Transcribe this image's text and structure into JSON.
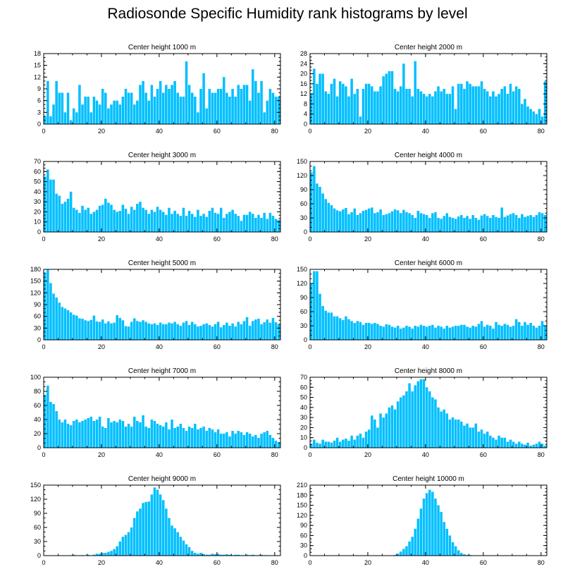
{
  "title": "Radiosonde Specific Humidity rank histograms by level",
  "bar_color": "#00BFFF",
  "chart_data": [
    {
      "type": "bar",
      "title": "Center height 1000 m",
      "xlim": [
        0,
        82
      ],
      "ylim": [
        0,
        18
      ],
      "yticks": [
        0,
        3,
        6,
        9,
        12,
        15,
        18
      ],
      "xticks": [
        0,
        20,
        40,
        60,
        80
      ],
      "values": [
        2,
        11,
        2,
        5,
        11,
        8,
        8,
        3,
        8,
        1,
        4,
        3,
        10,
        5,
        7,
        7,
        3,
        7,
        6,
        5,
        9,
        8,
        4,
        5,
        6,
        6,
        5,
        7,
        9,
        8,
        8,
        5,
        6,
        10,
        11,
        8,
        6,
        10,
        7,
        9,
        11,
        8,
        10,
        9,
        10,
        11,
        8,
        7,
        7,
        16,
        10,
        8,
        7,
        3,
        9,
        13,
        4,
        9,
        8,
        8,
        9,
        9,
        12,
        8,
        7,
        9,
        7,
        10,
        9,
        10,
        10,
        6,
        14,
        11,
        8,
        11,
        3,
        6,
        9,
        8,
        7,
        7
      ]
    },
    {
      "type": "bar",
      "title": "Center height 2000 m",
      "xlim": [
        0,
        82
      ],
      "ylim": [
        0,
        28
      ],
      "yticks": [
        0,
        4,
        8,
        12,
        16,
        20,
        24,
        28
      ],
      "xticks": [
        0,
        20,
        40,
        60,
        80
      ],
      "values": [
        12,
        22,
        16,
        20,
        20,
        13,
        12,
        16,
        18,
        11,
        17,
        16,
        15,
        11,
        18,
        12,
        14,
        3,
        14,
        16,
        16,
        15,
        13,
        13,
        15,
        19,
        20,
        21,
        21,
        14,
        13,
        15,
        24,
        14,
        14,
        11,
        25,
        14,
        13,
        12,
        11,
        12,
        11,
        13,
        15,
        13,
        14,
        12,
        12,
        15,
        6,
        16,
        16,
        14,
        17,
        16,
        15,
        15,
        15,
        17,
        14,
        13,
        11,
        13,
        11,
        12,
        14,
        15,
        12,
        16,
        13,
        15,
        14,
        8,
        10,
        7,
        6,
        5,
        4,
        6,
        3,
        17
      ]
    },
    {
      "type": "bar",
      "title": "Center height 3000 m",
      "xlim": [
        0,
        82
      ],
      "ylim": [
        0,
        70
      ],
      "yticks": [
        0,
        10,
        20,
        30,
        40,
        50,
        60,
        70
      ],
      "xticks": [
        0,
        20,
        40,
        60,
        80
      ],
      "values": [
        55,
        62,
        52,
        52,
        38,
        36,
        28,
        30,
        33,
        40,
        24,
        22,
        19,
        26,
        22,
        24,
        18,
        20,
        22,
        26,
        27,
        33,
        29,
        27,
        22,
        20,
        21,
        27,
        23,
        18,
        25,
        22,
        28,
        30,
        24,
        22,
        18,
        22,
        20,
        25,
        22,
        20,
        17,
        24,
        18,
        21,
        18,
        16,
        24,
        16,
        21,
        18,
        15,
        22,
        16,
        18,
        15,
        21,
        24,
        19,
        18,
        24,
        14,
        18,
        20,
        22,
        18,
        16,
        11,
        17,
        17,
        20,
        18,
        14,
        17,
        14,
        19,
        13,
        19,
        16,
        13,
        12
      ]
    },
    {
      "type": "bar",
      "title": "Center height 4000 m",
      "xlim": [
        0,
        82
      ],
      "ylim": [
        0,
        150
      ],
      "yticks": [
        0,
        30,
        60,
        90,
        120,
        150
      ],
      "xticks": [
        0,
        20,
        40,
        60,
        80
      ],
      "values": [
        127,
        140,
        103,
        96,
        82,
        70,
        62,
        57,
        50,
        46,
        44,
        48,
        51,
        38,
        42,
        50,
        36,
        40,
        45,
        47,
        50,
        52,
        40,
        42,
        48,
        36,
        38,
        40,
        44,
        48,
        46,
        40,
        47,
        42,
        40,
        36,
        30,
        45,
        40,
        38,
        36,
        30,
        40,
        42,
        30,
        28,
        34,
        40,
        32,
        30,
        28,
        33,
        36,
        30,
        34,
        28,
        36,
        30,
        26,
        35,
        38,
        34,
        30,
        36,
        32,
        30,
        52,
        32,
        35,
        38,
        40,
        36,
        30,
        38,
        32,
        34,
        36,
        32,
        36,
        42,
        40,
        36
      ]
    },
    {
      "type": "bar",
      "title": "Center height 5000 m",
      "xlim": [
        0,
        82
      ],
      "ylim": [
        0,
        180
      ],
      "yticks": [
        0,
        30,
        60,
        90,
        120,
        150,
        180
      ],
      "xticks": [
        0,
        20,
        40,
        60,
        80
      ],
      "values": [
        172,
        180,
        145,
        118,
        108,
        95,
        84,
        80,
        76,
        70,
        64,
        62,
        55,
        54,
        50,
        48,
        51,
        62,
        47,
        46,
        52,
        42,
        47,
        42,
        44,
        63,
        56,
        50,
        35,
        34,
        46,
        55,
        48,
        46,
        50,
        46,
        42,
        40,
        42,
        38,
        44,
        40,
        40,
        44,
        42,
        46,
        40,
        36,
        44,
        48,
        38,
        46,
        40,
        34,
        36,
        40,
        42,
        38,
        34,
        40,
        46,
        32,
        38,
        44,
        36,
        42,
        34,
        46,
        40,
        48,
        58,
        36,
        48,
        52,
        54,
        40,
        45,
        52,
        44,
        56,
        45,
        40
      ]
    },
    {
      "type": "bar",
      "title": "Center height 6000 m",
      "xlim": [
        0,
        82
      ],
      "ylim": [
        0,
        150
      ],
      "yticks": [
        0,
        30,
        60,
        90,
        120,
        150
      ],
      "xticks": [
        0,
        20,
        40,
        60,
        80
      ],
      "values": [
        120,
        146,
        146,
        98,
        72,
        62,
        58,
        58,
        50,
        50,
        46,
        42,
        50,
        44,
        40,
        36,
        40,
        38,
        32,
        36,
        36,
        34,
        36,
        34,
        30,
        28,
        33,
        32,
        28,
        26,
        30,
        24,
        26,
        30,
        28,
        24,
        30,
        28,
        32,
        30,
        28,
        30,
        32,
        26,
        30,
        28,
        24,
        30,
        26,
        28,
        30,
        30,
        32,
        32,
        28,
        26,
        30,
        28,
        34,
        40,
        28,
        32,
        30,
        24,
        38,
        32,
        30,
        34,
        32,
        28,
        30,
        44,
        38,
        30,
        38,
        32,
        36,
        30,
        26,
        30,
        40,
        30
      ]
    },
    {
      "type": "bar",
      "title": "Center height 7000 m",
      "xlim": [
        0,
        82
      ],
      "ylim": [
        0,
        100
      ],
      "yticks": [
        0,
        20,
        40,
        60,
        80,
        100
      ],
      "xticks": [
        0,
        20,
        40,
        60,
        80
      ],
      "values": [
        75,
        88,
        65,
        62,
        52,
        40,
        36,
        40,
        34,
        32,
        38,
        40,
        36,
        38,
        40,
        42,
        44,
        38,
        40,
        44,
        30,
        28,
        42,
        36,
        38,
        36,
        40,
        38,
        30,
        34,
        30,
        44,
        38,
        36,
        46,
        30,
        28,
        40,
        38,
        34,
        32,
        30,
        36,
        26,
        40,
        28,
        30,
        34,
        28,
        24,
        30,
        28,
        34,
        26,
        28,
        30,
        24,
        28,
        26,
        22,
        26,
        20,
        20,
        22,
        16,
        24,
        20,
        24,
        22,
        18,
        22,
        20,
        16,
        18,
        14,
        20,
        22,
        24,
        18,
        14,
        10,
        8
      ]
    },
    {
      "type": "bar",
      "title": "Center height 8000 m",
      "xlim": [
        0,
        82
      ],
      "ylim": [
        0,
        70
      ],
      "yticks": [
        0,
        10,
        20,
        30,
        40,
        50,
        60,
        70
      ],
      "xticks": [
        0,
        20,
        40,
        60,
        80
      ],
      "values": [
        4,
        8,
        5,
        4,
        8,
        6,
        6,
        5,
        7,
        10,
        6,
        8,
        9,
        7,
        12,
        8,
        12,
        14,
        10,
        16,
        18,
        32,
        28,
        20,
        34,
        30,
        34,
        40,
        42,
        38,
        46,
        50,
        52,
        56,
        64,
        56,
        62,
        66,
        68,
        68,
        60,
        56,
        50,
        48,
        40,
        36,
        38,
        34,
        28,
        30,
        28,
        28,
        26,
        22,
        24,
        20,
        20,
        24,
        16,
        18,
        14,
        16,
        12,
        10,
        8,
        12,
        10,
        10,
        6,
        8,
        6,
        4,
        6,
        4,
        3,
        5,
        2,
        3,
        4,
        6,
        4,
        2
      ]
    },
    {
      "type": "bar",
      "title": "Center height 9000 m",
      "xlim": [
        0,
        82
      ],
      "ylim": [
        0,
        150
      ],
      "yticks": [
        0,
        30,
        60,
        90,
        120,
        150
      ],
      "xticks": [
        0,
        20,
        40,
        60,
        80
      ],
      "values": [
        0,
        0,
        0,
        0,
        0,
        0,
        0,
        0,
        0,
        0,
        2,
        0,
        0,
        1,
        0,
        2,
        0,
        2,
        4,
        4,
        6,
        6,
        8,
        10,
        14,
        20,
        30,
        40,
        44,
        50,
        60,
        80,
        94,
        100,
        112,
        114,
        115,
        130,
        145,
        140,
        130,
        118,
        100,
        80,
        64,
        58,
        50,
        40,
        32,
        24,
        18,
        10,
        6,
        4,
        6,
        3,
        2,
        2,
        4,
        3,
        4,
        2,
        2,
        3,
        2,
        1,
        2,
        2,
        1,
        1,
        2,
        1,
        2,
        1,
        1,
        2,
        1,
        1,
        0,
        0,
        1,
        0
      ]
    },
    {
      "type": "bar",
      "title": "Center height 10000 m",
      "xlim": [
        0,
        82
      ],
      "ylim": [
        0,
        210
      ],
      "yticks": [
        0,
        30,
        60,
        90,
        120,
        150,
        180,
        210
      ],
      "xticks": [
        0,
        20,
        40,
        60,
        80
      ],
      "values": [
        0,
        0,
        0,
        0,
        0,
        0,
        0,
        0,
        0,
        0,
        0,
        0,
        0,
        0,
        0,
        0,
        0,
        0,
        0,
        0,
        0,
        0,
        0,
        0,
        0,
        0,
        0,
        0,
        1,
        2,
        6,
        12,
        20,
        28,
        42,
        56,
        80,
        110,
        140,
        170,
        186,
        196,
        190,
        170,
        150,
        130,
        100,
        80,
        60,
        40,
        28,
        16,
        8,
        4,
        2,
        2,
        1,
        1,
        0,
        0,
        0,
        1,
        0,
        0,
        0,
        0,
        0,
        0,
        0,
        0,
        0,
        0,
        0,
        0,
        0,
        0,
        0,
        0,
        0,
        0,
        0,
        0
      ]
    }
  ]
}
